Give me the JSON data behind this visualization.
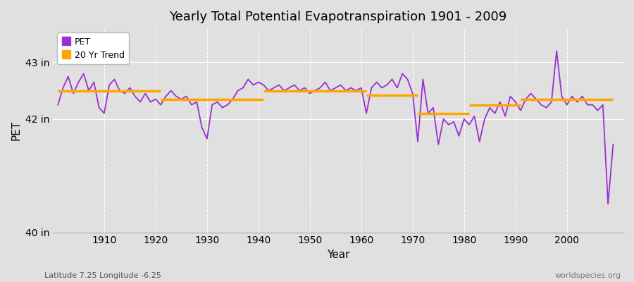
{
  "title": "Yearly Total Potential Evapotranspiration 1901 - 2009",
  "xlabel": "Year",
  "ylabel": "PET",
  "footer_left": "Latitude 7.25 Longitude -6.25",
  "footer_right": "worldspecies.org",
  "ylim": [
    40.0,
    43.6
  ],
  "xlim": [
    1900,
    2011
  ],
  "bg_color": "#e0e0e0",
  "pet_color": "#9b30d0",
  "trend_color": "#FFA500",
  "pet_linewidth": 1.3,
  "trend_linewidth": 2.5,
  "years": [
    1901,
    1902,
    1903,
    1904,
    1905,
    1906,
    1907,
    1908,
    1909,
    1910,
    1911,
    1912,
    1913,
    1914,
    1915,
    1916,
    1917,
    1918,
    1919,
    1920,
    1921,
    1922,
    1923,
    1924,
    1925,
    1926,
    1927,
    1928,
    1929,
    1930,
    1931,
    1932,
    1933,
    1934,
    1935,
    1936,
    1937,
    1938,
    1939,
    1940,
    1941,
    1942,
    1943,
    1944,
    1945,
    1946,
    1947,
    1948,
    1949,
    1950,
    1951,
    1952,
    1953,
    1954,
    1955,
    1956,
    1957,
    1958,
    1959,
    1960,
    1961,
    1962,
    1963,
    1964,
    1965,
    1966,
    1967,
    1968,
    1969,
    1970,
    1971,
    1972,
    1973,
    1974,
    1975,
    1976,
    1977,
    1978,
    1979,
    1980,
    1981,
    1982,
    1983,
    1984,
    1985,
    1986,
    1987,
    1988,
    1989,
    1990,
    1991,
    1992,
    1993,
    1994,
    1995,
    1996,
    1997,
    1998,
    1999,
    2000,
    2001,
    2002,
    2003,
    2004,
    2005,
    2006,
    2007,
    2008,
    2009
  ],
  "pet_values": [
    42.25,
    42.55,
    42.75,
    42.45,
    42.65,
    42.8,
    42.5,
    42.65,
    42.2,
    42.1,
    42.6,
    42.7,
    42.5,
    42.45,
    42.55,
    42.4,
    42.3,
    42.45,
    42.3,
    42.35,
    42.25,
    42.4,
    42.5,
    42.4,
    42.35,
    42.4,
    42.25,
    42.3,
    41.85,
    41.65,
    42.25,
    42.3,
    42.2,
    42.25,
    42.35,
    42.5,
    42.55,
    42.7,
    42.6,
    42.65,
    42.6,
    42.5,
    42.55,
    42.6,
    42.5,
    42.55,
    42.6,
    42.5,
    42.55,
    42.45,
    42.5,
    42.55,
    42.65,
    42.5,
    42.55,
    42.6,
    42.5,
    42.55,
    42.5,
    42.55,
    42.1,
    42.55,
    42.65,
    42.55,
    42.6,
    42.7,
    42.55,
    42.8,
    42.7,
    42.45,
    41.6,
    42.7,
    42.1,
    42.2,
    41.55,
    42.0,
    41.9,
    41.95,
    41.7,
    42.0,
    41.9,
    42.05,
    41.6,
    42.0,
    42.2,
    42.1,
    42.3,
    42.05,
    42.4,
    42.3,
    42.15,
    42.35,
    42.45,
    42.35,
    42.25,
    42.2,
    42.3,
    43.2,
    42.4,
    42.25,
    42.4,
    42.3,
    42.4,
    42.25,
    42.25,
    42.15,
    42.25,
    40.5,
    41.55
  ],
  "trend_segments": [
    {
      "x": [
        1901,
        1921
      ],
      "y": [
        42.5,
        42.5
      ]
    },
    {
      "x": [
        1921,
        1941
      ],
      "y": [
        42.35,
        42.35
      ]
    },
    {
      "x": [
        1941,
        1961
      ],
      "y": [
        42.5,
        42.5
      ]
    },
    {
      "x": [
        1961,
        1971
      ],
      "y": [
        42.42,
        42.42
      ]
    },
    {
      "x": [
        1971,
        1981
      ],
      "y": [
        42.1,
        42.1
      ]
    },
    {
      "x": [
        1981,
        1991
      ],
      "y": [
        42.25,
        42.25
      ]
    },
    {
      "x": [
        1991,
        2009
      ],
      "y": [
        42.35,
        42.35
      ]
    }
  ],
  "xticks": [
    1910,
    1920,
    1930,
    1940,
    1950,
    1960,
    1970,
    1980,
    1990,
    2000
  ],
  "yticks": [
    40,
    42,
    43
  ],
  "ytick_labels": [
    "40 in",
    "42 in",
    "43 in"
  ]
}
